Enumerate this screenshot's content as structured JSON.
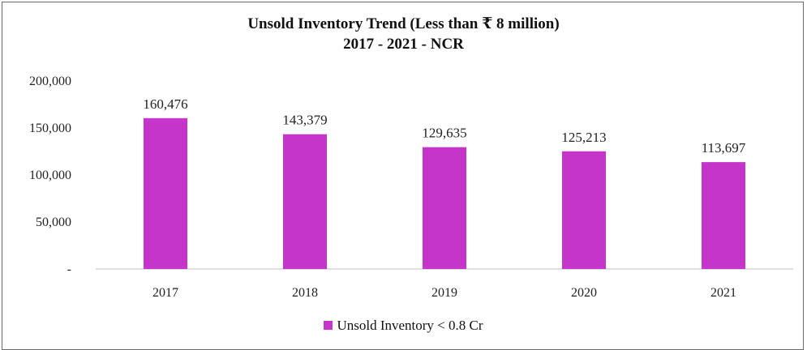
{
  "chart_data": {
    "type": "bar",
    "title": "Unsold Inventory Trend (Less than ₹ 8 million)",
    "subtitle": "2017 - 2021 - NCR",
    "categories": [
      "2017",
      "2018",
      "2019",
      "2020",
      "2021"
    ],
    "series": [
      {
        "name": "Unsold Inventory < 0.8 Cr",
        "values": [
          160476,
          143379,
          129635,
          125213,
          113697
        ],
        "color": "#c535c9"
      }
    ],
    "data_labels": [
      "160,476",
      "143,379",
      "129,635",
      "125,213",
      "113,697"
    ],
    "yticks": [
      "-",
      "50,000",
      "100,000",
      "150,000",
      "200,000"
    ],
    "ylim": [
      0,
      200000
    ],
    "xlabel": "",
    "ylabel": "",
    "grid": false,
    "legend_position": "bottom"
  }
}
